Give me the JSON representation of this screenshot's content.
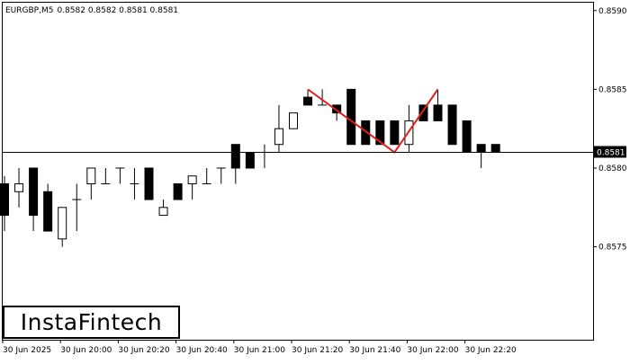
{
  "chart_data": {
    "type": "candlestick",
    "header": {
      "symbol": "EURGBP,M5",
      "ohlc": "0.8582 0.8582 0.8581 0.8581"
    },
    "y_axis": {
      "range": [
        0.85691,
        0.85905
      ],
      "ticks": [
        "0.8590",
        "0.8585",
        "0.8580",
        "0.8575"
      ],
      "tick_values": [
        0.859,
        0.8585,
        0.858,
        0.8575
      ]
    },
    "x_axis": {
      "ticks": [
        "30 Jun 2025",
        "30 Jun 20:00",
        "30 Jun 20:20",
        "30 Jun 20:40",
        "30 Jun 21:00",
        "30 Jun 21:20",
        "30 Jun 21:40",
        "30 Jun 22:00",
        "30 Jun 22:20"
      ],
      "tick_bar_index": [
        0,
        4,
        8,
        12,
        16,
        20,
        24,
        28,
        32
      ]
    },
    "current_price": {
      "label": "0.8581",
      "value": 0.8581
    },
    "candles": [
      {
        "o": 0.8579,
        "h": 0.85795,
        "l": 0.8576,
        "c": 0.8577
      },
      {
        "o": 0.85785,
        "h": 0.858,
        "l": 0.85775,
        "c": 0.8579
      },
      {
        "o": 0.858,
        "h": 0.858,
        "l": 0.8576,
        "c": 0.8577
      },
      {
        "o": 0.85785,
        "h": 0.8579,
        "l": 0.8576,
        "c": 0.8576
      },
      {
        "o": 0.85755,
        "h": 0.85775,
        "l": 0.8575,
        "c": 0.85775
      },
      {
        "o": 0.8578,
        "h": 0.8579,
        "l": 0.8576,
        "c": 0.8578
      },
      {
        "o": 0.8579,
        "h": 0.858,
        "l": 0.8578,
        "c": 0.858
      },
      {
        "o": 0.8579,
        "h": 0.858,
        "l": 0.8579,
        "c": 0.8579
      },
      {
        "o": 0.858,
        "h": 0.858,
        "l": 0.8579,
        "c": 0.858
      },
      {
        "o": 0.8579,
        "h": 0.858,
        "l": 0.8578,
        "c": 0.8579
      },
      {
        "o": 0.858,
        "h": 0.858,
        "l": 0.8578,
        "c": 0.8578
      },
      {
        "o": 0.8577,
        "h": 0.8578,
        "l": 0.8577,
        "c": 0.85775
      },
      {
        "o": 0.8579,
        "h": 0.8579,
        "l": 0.8578,
        "c": 0.8578
      },
      {
        "o": 0.8579,
        "h": 0.85795,
        "l": 0.8578,
        "c": 0.85795
      },
      {
        "o": 0.8579,
        "h": 0.858,
        "l": 0.8579,
        "c": 0.8579
      },
      {
        "o": 0.858,
        "h": 0.858,
        "l": 0.8579,
        "c": 0.858
      },
      {
        "o": 0.85815,
        "h": 0.85815,
        "l": 0.8579,
        "c": 0.858
      },
      {
        "o": 0.8581,
        "h": 0.8581,
        "l": 0.858,
        "c": 0.858
      },
      {
        "o": 0.8581,
        "h": 0.85815,
        "l": 0.858,
        "c": 0.8581
      },
      {
        "o": 0.85815,
        "h": 0.8584,
        "l": 0.8581,
        "c": 0.85825
      },
      {
        "o": 0.85825,
        "h": 0.85835,
        "l": 0.85825,
        "c": 0.85835
      },
      {
        "o": 0.85845,
        "h": 0.8585,
        "l": 0.8584,
        "c": 0.8584
      },
      {
        "o": 0.8584,
        "h": 0.8585,
        "l": 0.8584,
        "c": 0.8584
      },
      {
        "o": 0.8584,
        "h": 0.8584,
        "l": 0.8583,
        "c": 0.85835
      },
      {
        "o": 0.8585,
        "h": 0.8585,
        "l": 0.85815,
        "c": 0.85815
      },
      {
        "o": 0.8583,
        "h": 0.8583,
        "l": 0.85815,
        "c": 0.85815
      },
      {
        "o": 0.8583,
        "h": 0.8583,
        "l": 0.85815,
        "c": 0.85815
      },
      {
        "o": 0.8583,
        "h": 0.8583,
        "l": 0.85815,
        "c": 0.85815
      },
      {
        "o": 0.85815,
        "h": 0.8584,
        "l": 0.8581,
        "c": 0.8583
      },
      {
        "o": 0.8584,
        "h": 0.8584,
        "l": 0.8583,
        "c": 0.8583
      },
      {
        "o": 0.8584,
        "h": 0.8585,
        "l": 0.8583,
        "c": 0.8583
      },
      {
        "o": 0.8584,
        "h": 0.8584,
        "l": 0.85815,
        "c": 0.85815
      },
      {
        "o": 0.8583,
        "h": 0.8583,
        "l": 0.8581,
        "c": 0.8581
      },
      {
        "o": 0.85815,
        "h": 0.85815,
        "l": 0.858,
        "c": 0.8581
      },
      {
        "o": 0.85815,
        "h": 0.85815,
        "l": 0.8581,
        "c": 0.8581
      }
    ],
    "pattern_line": {
      "color": "#e02020",
      "points": [
        {
          "bar": 21,
          "price": 0.8585
        },
        {
          "bar": 27,
          "price": 0.8581
        },
        {
          "bar": 30,
          "price": 0.8585
        }
      ]
    },
    "colors": {
      "bull": "#ffffff",
      "bear": "#000000",
      "outline": "#000000",
      "current_line": "#000000"
    }
  },
  "logo": {
    "text": "InstaFintech"
  }
}
